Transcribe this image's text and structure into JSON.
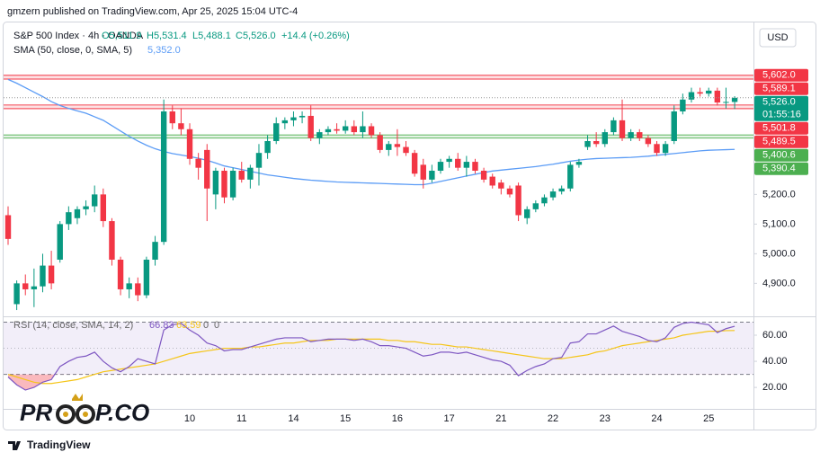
{
  "header": "gmzern published on TradingView.com, Apr 25, 2025 15:04 UTC-4",
  "currency": "USD",
  "watermark": {
    "left": "PR",
    "right": "P.CO"
  },
  "footer": "TradingView",
  "chart_data": [
    {
      "type": "candlestick",
      "title": "S&P 500 Index · 4h · OANDA",
      "legend_ohlc": [
        "O5,511.9",
        "H5,531.4",
        "L5,488.1",
        "C5,526.0"
      ],
      "change": "+14.4 (+0.26%)",
      "up_color": "#089981",
      "down_color": "#f23645",
      "categories": [
        null,
        null,
        null,
        null,
        null,
        null,
        null,
        null,
        null,
        null,
        null,
        null,
        null,
        null,
        null,
        null,
        null,
        null,
        null,
        null,
        null,
        "10",
        null,
        null,
        null,
        null,
        null,
        "11",
        null,
        null,
        null,
        null,
        null,
        "14",
        null,
        null,
        null,
        null,
        null,
        "15",
        null,
        null,
        null,
        null,
        null,
        "16",
        null,
        null,
        null,
        null,
        null,
        "17",
        null,
        null,
        null,
        null,
        null,
        "21",
        null,
        null,
        null,
        null,
        null,
        "22",
        null,
        null,
        null,
        null,
        null,
        "23",
        null,
        null,
        null,
        null,
        null,
        "24",
        null,
        null,
        null,
        null,
        null,
        "25",
        null,
        null,
        null
      ],
      "open": [
        5130,
        4830,
        4900,
        4880,
        4890,
        4960,
        4980,
        5100,
        5120,
        5150,
        5160,
        5200,
        5110,
        4980,
        4880,
        4900,
        4860,
        4980,
        5040,
        5480,
        5440,
        5420,
        5320,
        5350,
        5200,
        5280,
        5190,
        5280,
        5250,
        5290,
        5340,
        5380,
        5440,
        5450,
        5460,
        5465,
        5390,
        5410,
        5420,
        5415,
        5430,
        5410,
        5430,
        5400,
        5350,
        5370,
        5360,
        5340,
        5300,
        5250,
        5280,
        5310,
        5320,
        5290,
        5310,
        5280,
        5260,
        5240,
        5220,
        5230,
        5120,
        5150,
        5170,
        5190,
        5210,
        5220,
        5300,
        5360,
        5380,
        5370,
        5410,
        5450,
        5390,
        5410,
        5390,
        5370,
        5340,
        5380,
        5480,
        5520,
        5545,
        5540,
        5550,
        5510,
        5511.9
      ],
      "high": [
        5160,
        4910,
        4930,
        4950,
        5000,
        5010,
        5110,
        5160,
        5160,
        5180,
        5230,
        5220,
        5120,
        4990,
        4920,
        4920,
        4990,
        5060,
        5520,
        5500,
        5490,
        5440,
        5340,
        5370,
        5290,
        5290,
        5290,
        5310,
        5300,
        5370,
        5400,
        5460,
        5460,
        5480,
        5480,
        5500,
        5420,
        5430,
        5440,
        5450,
        5450,
        5480,
        5440,
        5410,
        5380,
        5420,
        5380,
        5350,
        5320,
        5300,
        5320,
        5330,
        5340,
        5330,
        5320,
        5290,
        5270,
        5250,
        5230,
        5240,
        5160,
        5180,
        5200,
        5220,
        5230,
        5310,
        5320,
        5400,
        5410,
        5420,
        5460,
        5520,
        5420,
        5420,
        5400,
        5380,
        5380,
        5500,
        5540,
        5560,
        5560,
        5560,
        5560,
        5560,
        5531.4
      ],
      "low": [
        5030,
        4810,
        4860,
        4820,
        4870,
        4880,
        4970,
        5080,
        5100,
        5130,
        5140,
        5090,
        4960,
        4860,
        4850,
        4840,
        4850,
        4960,
        5030,
        5420,
        5400,
        5300,
        5250,
        5110,
        5150,
        5170,
        5180,
        5240,
        5220,
        5230,
        5320,
        5370,
        5420,
        5430,
        5440,
        5380,
        5370,
        5400,
        5405,
        5405,
        5400,
        5390,
        5390,
        5340,
        5330,
        5330,
        5330,
        5260,
        5220,
        5240,
        5270,
        5290,
        5280,
        5260,
        5270,
        5240,
        5220,
        5200,
        5190,
        5110,
        5100,
        5140,
        5160,
        5180,
        5200,
        5210,
        5290,
        5350,
        5360,
        5360,
        5400,
        5380,
        5380,
        5380,
        5360,
        5330,
        5330,
        5370,
        5470,
        5510,
        5530,
        5530,
        5500,
        5490,
        5488.1
      ],
      "close": [
        5050,
        4900,
        4880,
        4890,
        4960,
        4900,
        5100,
        5140,
        5150,
        5160,
        5200,
        5110,
        4980,
        4880,
        4900,
        4860,
        4980,
        5040,
        5480,
        5440,
        5420,
        5320,
        5290,
        5220,
        5280,
        5190,
        5280,
        5250,
        5290,
        5340,
        5380,
        5440,
        5450,
        5460,
        5465,
        5390,
        5410,
        5420,
        5415,
        5430,
        5410,
        5430,
        5400,
        5350,
        5370,
        5360,
        5340,
        5270,
        5250,
        5280,
        5310,
        5320,
        5290,
        5310,
        5280,
        5250,
        5230,
        5220,
        5200,
        5130,
        5150,
        5170,
        5190,
        5210,
        5220,
        5300,
        5310,
        5380,
        5370,
        5410,
        5450,
        5390,
        5410,
        5390,
        5370,
        5340,
        5370,
        5480,
        5520,
        5545,
        5540,
        5550,
        5510,
        5512,
        5526.0
      ],
      "overlays": [
        {
          "name": "SMA (50, close, 0, SMA, 5)",
          "value_label": "5,352.0",
          "color": "#5b9cf6",
          "values": [
            5588,
            5575,
            5560,
            5545,
            5530,
            5513,
            5500,
            5490,
            5482,
            5474,
            5462,
            5450,
            5432,
            5414,
            5396,
            5380,
            5366,
            5354,
            5345,
            5338,
            5333,
            5328,
            5322,
            5315,
            5306,
            5296,
            5290,
            5284,
            5278,
            5272,
            5266,
            5262,
            5258,
            5254,
            5251,
            5248,
            5246,
            5244,
            5242,
            5241,
            5240,
            5239,
            5238,
            5237,
            5236,
            5235,
            5234,
            5233,
            5233,
            5238,
            5244,
            5250,
            5256,
            5262,
            5268,
            5274,
            5279,
            5282,
            5285,
            5288,
            5291,
            5294,
            5298,
            5302,
            5307,
            5312,
            5316,
            5319,
            5321,
            5322,
            5323,
            5324,
            5325,
            5327,
            5329,
            5332,
            5335,
            5338,
            5341,
            5344,
            5347,
            5349,
            5350,
            5351,
            5352
          ]
        }
      ],
      "zones": [
        {
          "color": "#f23645",
          "levels": [
            {
              "value": 5602.0,
              "label": "5,602.0"
            },
            {
              "value": 5589.1,
              "label": "5,589.1"
            }
          ]
        },
        {
          "color": "#f23645",
          "levels": [
            {
              "value": 5501.8,
              "label": "5,501.8"
            },
            {
              "value": 5489.5,
              "label": "5,489.5"
            }
          ]
        },
        {
          "color": "#4caf50",
          "levels": [
            {
              "value": 5400.6,
              "label": "5,400.6"
            },
            {
              "value": 5390.4,
              "label": "5,390.4"
            }
          ]
        }
      ],
      "last_price": {
        "value": 5526.0,
        "label": "5,526.0"
      },
      "countdown": "01:55:16",
      "ylim": [
        4795,
        5780
      ],
      "yticks": [
        {
          "value": 5200,
          "label": "5,200.0"
        },
        {
          "value": 5100,
          "label": "5,100.0"
        },
        {
          "value": 5000,
          "label": "5,000.0"
        },
        {
          "value": 4900,
          "label": "4,900.0"
        }
      ],
      "grid": false
    },
    {
      "type": "line",
      "title": "RSI (14, close, SMA, 14, 2)",
      "value_labels": [
        "66.83",
        "63.59"
      ],
      "extra_labels": [
        "0",
        "0"
      ],
      "series": [
        {
          "name": "RSI",
          "color": "#7e57c2",
          "values": [
            28,
            22,
            18,
            20,
            24,
            26,
            36,
            40,
            43,
            44,
            47,
            40,
            35,
            32,
            36,
            42,
            40,
            38,
            64,
            68,
            69,
            64,
            60,
            54,
            52,
            48,
            49,
            49,
            51,
            53,
            55,
            57,
            58,
            58,
            58,
            55,
            56,
            57,
            57,
            57,
            56,
            57,
            55,
            52,
            52,
            51,
            50,
            47,
            44,
            45,
            47,
            47,
            46,
            47,
            45,
            43,
            41,
            40,
            37,
            29,
            33,
            36,
            38,
            42,
            43,
            54,
            55,
            61,
            61,
            64,
            67,
            63,
            61,
            59,
            56,
            55,
            58,
            66,
            69,
            70,
            69,
            68,
            62,
            65,
            66.83
          ]
        },
        {
          "name": "RSI-based MA",
          "color": "#f5c518",
          "values": [
            30,
            28,
            26,
            24,
            23,
            23,
            24,
            25,
            26,
            28,
            30,
            32,
            33,
            34,
            35,
            36,
            37,
            38,
            40,
            42,
            44,
            46,
            47,
            48,
            49,
            50,
            50,
            50,
            51,
            51,
            52,
            53,
            54,
            54,
            55,
            56,
            56,
            56,
            57,
            57,
            57,
            57,
            57,
            57,
            56,
            56,
            55,
            55,
            54,
            53,
            53,
            52,
            51,
            51,
            50,
            49,
            48,
            47,
            46,
            45,
            44,
            43,
            42,
            42,
            42,
            43,
            44,
            45,
            47,
            48,
            50,
            52,
            53,
            54,
            55,
            56,
            57,
            58,
            60,
            61,
            62,
            63,
            63,
            63.5,
            63.59
          ]
        }
      ],
      "band": [
        30,
        70
      ],
      "midline": 50,
      "ylim": [
        7,
        72.4
      ],
      "yticks": [
        {
          "value": 60,
          "label": "60.00"
        },
        {
          "value": 40,
          "label": "40.00"
        },
        {
          "value": 20,
          "label": "20.00"
        }
      ]
    }
  ]
}
